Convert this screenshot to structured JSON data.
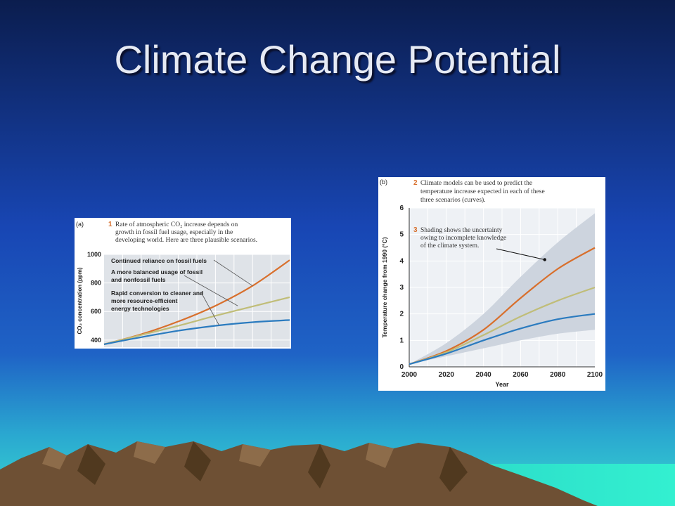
{
  "slide": {
    "title": "Climate Change Potential",
    "colors": {
      "sky_top": "#0b1d4e",
      "sky_mid": "#1846b4",
      "sky_low": "#2aa8d0",
      "sea": "#33f0d0",
      "mountain": "#6e5034",
      "mountain_light": "#8d6c4a"
    }
  },
  "chart_data": [
    {
      "type": "line",
      "panel_label": "(a)",
      "note_number": "1",
      "note_lines": [
        "Rate of atmospheric CO₂ increase depends on",
        "growth in fossil fuel usage, especially in the",
        "developing world. Here are three plausible scenarios."
      ],
      "ylabel": "CO₂ concentration (ppm)",
      "yticks": [
        "1000",
        "800",
        "600",
        "400"
      ],
      "ylim": [
        350,
        1000
      ],
      "xlim": [
        2000,
        2100
      ],
      "grid": true,
      "x": [
        2000,
        2020,
        2040,
        2060,
        2080,
        2100
      ],
      "series": [
        {
          "name": "Continued reliance on fossil fuels",
          "color": "#d86f2c",
          "values": [
            370,
            440,
            530,
            640,
            780,
            960
          ]
        },
        {
          "name": "A more balanced usage of fossil and nonfossil fuels",
          "color": "#c0bd78",
          "values": [
            370,
            435,
            500,
            570,
            635,
            700
          ]
        },
        {
          "name": "Rapid conversion to cleaner and more resource-efficient energy technologies",
          "color": "#2b7bbf",
          "values": [
            370,
            420,
            465,
            500,
            525,
            540
          ]
        }
      ],
      "labels": [
        {
          "lines": [
            "Continued reliance on fossil fuels"
          ]
        },
        {
          "lines": [
            "A more balanced usage of fossil",
            "and nonfossil fuels"
          ]
        },
        {
          "lines": [
            "Rapid conversion to cleaner and",
            "more resource-efficient",
            "energy technologies"
          ]
        }
      ]
    },
    {
      "type": "line",
      "panel_label": "(b)",
      "note_number": "2",
      "note_lines": [
        "Climate models can be used to predict the",
        "temperature increase expected in each of these",
        "three scenarios (curves)."
      ],
      "note2_number": "3",
      "note2_lines": [
        "Shading shows the uncertainty",
        "owing to incomplete knowledge",
        "of the climate system."
      ],
      "xlabel": "Year",
      "ylabel": "Temperature change from 1990 (°C)",
      "xticks": [
        "2000",
        "2020",
        "2040",
        "2060",
        "2080",
        "2100"
      ],
      "yticks": [
        "0",
        "1",
        "2",
        "3",
        "4",
        "5",
        "6"
      ],
      "xlim": [
        2000,
        2100
      ],
      "ylim": [
        0,
        6
      ],
      "grid": true,
      "x": [
        2000,
        2020,
        2040,
        2060,
        2080,
        2100
      ],
      "series": [
        {
          "name": "",
          "color": "#d86f2c",
          "values": [
            0.1,
            0.6,
            1.4,
            2.6,
            3.7,
            4.5
          ]
        },
        {
          "name": "",
          "color": "#c0bd78",
          "values": [
            0.1,
            0.55,
            1.2,
            1.9,
            2.5,
            3.0
          ]
        },
        {
          "name": "",
          "color": "#2b7bbf",
          "values": [
            0.1,
            0.5,
            1.0,
            1.45,
            1.8,
            2.0
          ]
        }
      ],
      "uncertainty_band": {
        "x": [
          2000,
          2020,
          2040,
          2060,
          2080,
          2100
        ],
        "lower": [
          0.1,
          0.4,
          0.7,
          1.0,
          1.25,
          1.4
        ],
        "upper": [
          0.1,
          0.9,
          2.0,
          3.4,
          4.7,
          5.8
        ]
      }
    }
  ]
}
